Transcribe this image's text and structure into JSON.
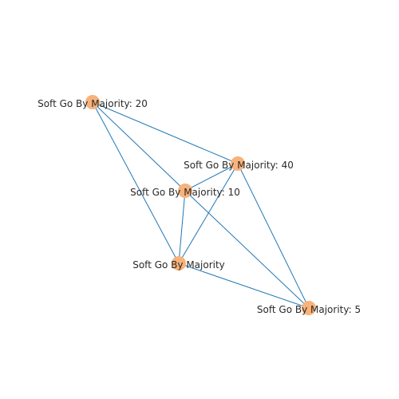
{
  "graph": {
    "node_color": "#f8b27a",
    "edge_color": "#1f77b4",
    "nodes": [
      {
        "id": "n20",
        "label": "Soft Go By Majority: 20"
      },
      {
        "id": "n40",
        "label": "Soft Go By Majority: 40"
      },
      {
        "id": "n10",
        "label": "Soft Go By Majority: 10"
      },
      {
        "id": "n0",
        "label": "Soft Go By Majority"
      },
      {
        "id": "n5",
        "label": "Soft Go By Majority: 5"
      }
    ],
    "edges": [
      [
        "n20",
        "n40"
      ],
      [
        "n20",
        "n10"
      ],
      [
        "n20",
        "n0"
      ],
      [
        "n40",
        "n10"
      ],
      [
        "n40",
        "n0"
      ],
      [
        "n40",
        "n5"
      ],
      [
        "n10",
        "n0"
      ],
      [
        "n10",
        "n5"
      ],
      [
        "n0",
        "n5"
      ]
    ]
  }
}
